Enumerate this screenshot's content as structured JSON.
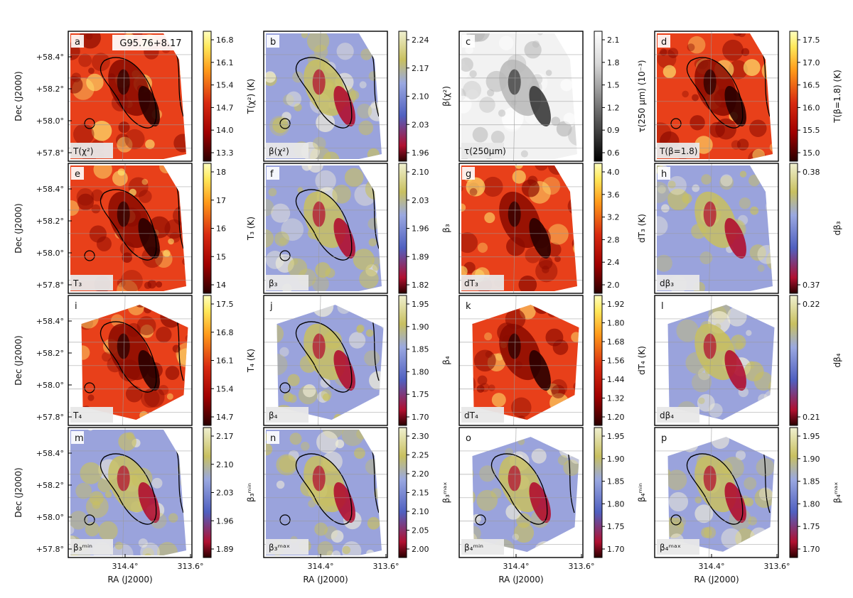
{
  "figure": {
    "title": "G95.76+8.17",
    "xlabel": "RA (J2000)",
    "ylabel": "Dec (J2000)",
    "x_ticks": [
      "314.4°",
      "313.6°"
    ],
    "y_ticks": [
      "+58.4°",
      "+58.2°",
      "+58.0°",
      "+57.8°"
    ]
  },
  "colors": {
    "hot_dark": "#2a0000",
    "hot_mid": "#d82a10",
    "hot_light": "#ffffc0",
    "div_red": "#b01030",
    "div_blue": "#5060c0",
    "div_yellow": "#c8c060"
  },
  "chart_data": [
    {
      "type": "heatmap",
      "letter": "a",
      "corner_label": "T(χ²)",
      "colorbar_label": "T(χ²) (K)",
      "colorbar_ticks": [
        "16.8",
        "16.1",
        "15.4",
        "14.7",
        "14.0",
        "13.3"
      ],
      "cmap": "hot",
      "contours": true
    },
    {
      "type": "heatmap",
      "letter": "b",
      "corner_label": "β(χ²)",
      "colorbar_label": "β(χ²)",
      "colorbar_ticks": [
        "2.24",
        "2.17",
        "2.10",
        "2.03",
        "1.96"
      ],
      "cmap": "diverging",
      "contours": true
    },
    {
      "type": "heatmap",
      "letter": "c",
      "corner_label": "τ(250μm)",
      "colorbar_label": "τ(250 μm) (10⁻³)",
      "colorbar_ticks": [
        "2.1",
        "1.8",
        "1.5",
        "1.2",
        "0.9",
        "0.6"
      ],
      "cmap": "gray",
      "contours": false
    },
    {
      "type": "heatmap",
      "letter": "d",
      "corner_label": "T(β=1.8)",
      "colorbar_label": "T(β=1.8) (K)",
      "colorbar_ticks": [
        "17.5",
        "17.0",
        "16.5",
        "16.0",
        "15.5",
        "15.0"
      ],
      "cmap": "hot",
      "contours": true
    },
    {
      "type": "heatmap",
      "letter": "e",
      "corner_label": "T₃",
      "colorbar_label": "T₃ (K)",
      "colorbar_ticks": [
        "18",
        "17",
        "16",
        "15",
        "14"
      ],
      "cmap": "hot",
      "contours": true
    },
    {
      "type": "heatmap",
      "letter": "f",
      "corner_label": "β₃",
      "colorbar_label": "β₃",
      "colorbar_ticks": [
        "2.10",
        "2.03",
        "1.96",
        "1.89",
        "1.82"
      ],
      "cmap": "diverging",
      "contours": true
    },
    {
      "type": "heatmap",
      "letter": "g",
      "corner_label": "dT₃",
      "colorbar_label": "dT₃ (K)",
      "colorbar_ticks": [
        "4.0",
        "3.6",
        "3.2",
        "2.8",
        "2.4",
        "2.0"
      ],
      "cmap": "hot",
      "contours": false
    },
    {
      "type": "heatmap",
      "letter": "h",
      "corner_label": "dβ₃",
      "colorbar_label": "dβ₃",
      "colorbar_ticks": [
        "0.38",
        "0.37"
      ],
      "cmap": "diverging",
      "contours": false
    },
    {
      "type": "heatmap",
      "letter": "i",
      "corner_label": "T₄",
      "colorbar_label": "T₄ (K)",
      "colorbar_ticks": [
        "17.5",
        "16.8",
        "16.1",
        "15.4",
        "14.7"
      ],
      "cmap": "hot",
      "contours": true
    },
    {
      "type": "heatmap",
      "letter": "j",
      "corner_label": "β₄",
      "colorbar_label": "β₄",
      "colorbar_ticks": [
        "1.95",
        "1.90",
        "1.85",
        "1.80",
        "1.75",
        "1.70"
      ],
      "cmap": "diverging",
      "contours": true
    },
    {
      "type": "heatmap",
      "letter": "k",
      "corner_label": "dT₄",
      "colorbar_label": "dT₄ (K)",
      "colorbar_ticks": [
        "1.92",
        "1.80",
        "1.68",
        "1.56",
        "1.44",
        "1.32",
        "1.20"
      ],
      "cmap": "hot",
      "contours": false
    },
    {
      "type": "heatmap",
      "letter": "l",
      "corner_label": "dβ₄",
      "colorbar_label": "dβ₄",
      "colorbar_ticks": [
        "0.22",
        "0.21"
      ],
      "cmap": "diverging",
      "contours": false
    },
    {
      "type": "heatmap",
      "letter": "m",
      "corner_label": "β₃ᵐⁱⁿ",
      "colorbar_label": "β₃ᵐⁱⁿ",
      "colorbar_ticks": [
        "2.17",
        "2.10",
        "2.03",
        "1.96",
        "1.89"
      ],
      "cmap": "diverging",
      "contours": true
    },
    {
      "type": "heatmap",
      "letter": "n",
      "corner_label": "β₃ᵐᵃˣ",
      "colorbar_label": "β₃ᵐᵃˣ",
      "colorbar_ticks": [
        "2.30",
        "2.25",
        "2.20",
        "2.15",
        "2.10",
        "2.05",
        "2.00"
      ],
      "cmap": "diverging",
      "contours": true
    },
    {
      "type": "heatmap",
      "letter": "o",
      "corner_label": "β₄ᵐⁱⁿ",
      "colorbar_label": "β₄ᵐⁱⁿ",
      "colorbar_ticks": [
        "1.95",
        "1.90",
        "1.85",
        "1.80",
        "1.75",
        "1.70"
      ],
      "cmap": "diverging",
      "contours": true
    },
    {
      "type": "heatmap",
      "letter": "p",
      "corner_label": "β₄ᵐᵃˣ",
      "colorbar_label": "β₄ᵐᵃˣ",
      "colorbar_ticks": [
        "1.95",
        "1.90",
        "1.85",
        "1.80",
        "1.75",
        "1.70"
      ],
      "cmap": "diverging",
      "contours": true
    }
  ]
}
